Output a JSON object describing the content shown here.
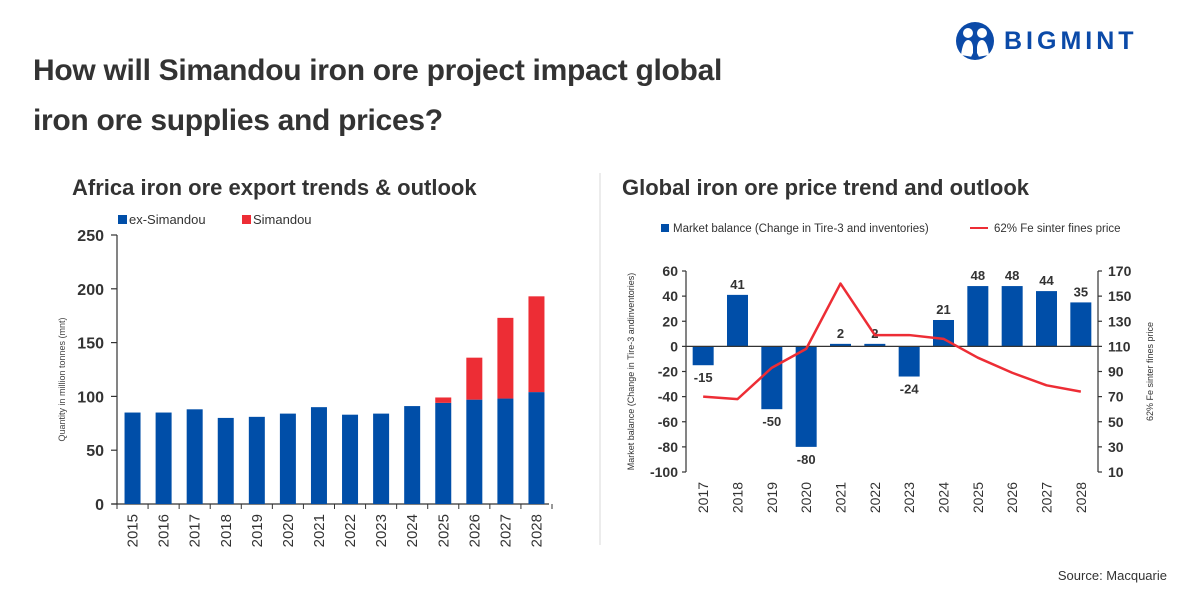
{
  "header": {
    "title_line1": "How will Simandou iron ore project impact global",
    "title_line2": "iron ore supplies and prices?",
    "logo_text": "BIGMINT",
    "source": "Source: Macquarie"
  },
  "colors": {
    "blue": "#004ea8",
    "red": "#ed2d35",
    "text": "#333333",
    "brand": "#0b4aa8"
  },
  "chart_data": [
    {
      "type": "bar",
      "stacked": true,
      "title": "Africa iron ore export trends & outlook",
      "ylabel": "Quantity in million tonnes (mnt)",
      "xlabel": "",
      "ylim": [
        0,
        250
      ],
      "yticks": [
        0,
        50,
        100,
        150,
        200,
        250
      ],
      "legend_position": "top-left",
      "categories": [
        "2015",
        "2016",
        "2017",
        "2018",
        "2019",
        "2020",
        "2021",
        "2022",
        "2023",
        "2024",
        "2025",
        "2026",
        "2027",
        "2028"
      ],
      "series": [
        {
          "name": "ex-Simandou",
          "color": "#004ea8",
          "values": [
            85,
            85,
            88,
            80,
            81,
            84,
            90,
            83,
            84,
            91,
            94,
            97,
            98,
            104
          ]
        },
        {
          "name": "Simandou",
          "color": "#ed2d35",
          "values": [
            0,
            0,
            0,
            0,
            0,
            0,
            0,
            0,
            0,
            0,
            5,
            39,
            75,
            89
          ]
        }
      ]
    },
    {
      "type": "bar+line",
      "title": "Global iron ore price trend and outlook",
      "ylabel": "Market balance (Change in Tire-3 andinventories)",
      "y2label": "62% Fe sinter fines price",
      "ylim": [
        -100,
        60
      ],
      "yticks": [
        60,
        40,
        20,
        0,
        -20,
        -40,
        -60,
        -80,
        -100
      ],
      "y2lim": [
        10,
        170
      ],
      "y2ticks": [
        170,
        150,
        130,
        110,
        90,
        70,
        50,
        30,
        10
      ],
      "legend_position": "top",
      "categories": [
        "2017",
        "2018",
        "2019",
        "2020",
        "2021",
        "2022",
        "2023",
        "2024",
        "2025",
        "2026",
        "2027",
        "2028"
      ],
      "series": [
        {
          "name": "Market balance (Change in Tire-3 and inventories)",
          "type": "bar",
          "axis": "left",
          "color": "#004ea8",
          "values": [
            -15,
            41,
            -50,
            -80,
            2,
            2,
            -24,
            21,
            48,
            48,
            44,
            35
          ],
          "labels": [
            "-15",
            "41",
            "-50",
            "-80",
            "2",
            "2",
            "-24",
            "21",
            "48",
            "48",
            "44",
            "35"
          ]
        },
        {
          "name": "62% Fe sinter fines price",
          "type": "line",
          "axis": "right",
          "color": "#ed2d35",
          "values": [
            70,
            68,
            93,
            108,
            160,
            119,
            119,
            116,
            101,
            89,
            79,
            74
          ]
        }
      ]
    }
  ]
}
